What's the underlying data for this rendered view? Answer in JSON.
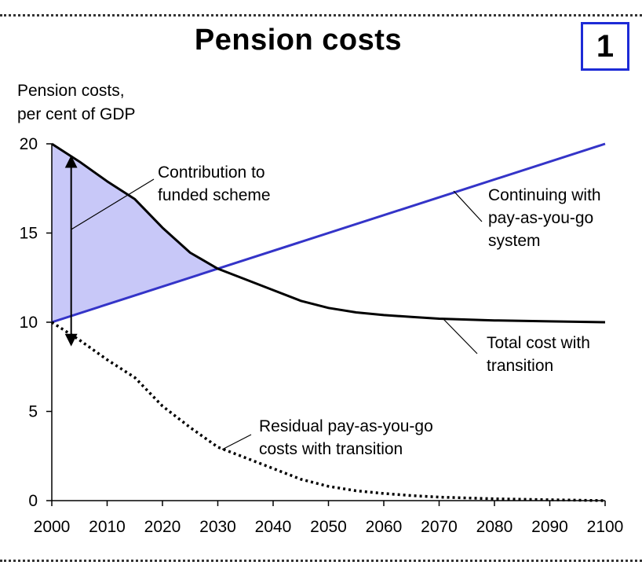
{
  "header": {
    "title": "Pension costs",
    "badge": "1"
  },
  "chart_data": {
    "type": "line",
    "title": "Pension costs",
    "ylabel_lines": [
      "Pension costs,",
      "per cent of GDP"
    ],
    "xlabel": "",
    "xlim": [
      2000,
      2100
    ],
    "ylim": [
      0,
      20
    ],
    "x_ticks": [
      2000,
      2010,
      2020,
      2030,
      2040,
      2050,
      2060,
      2070,
      2080,
      2090,
      2100
    ],
    "y_ticks": [
      0,
      5,
      10,
      15,
      20
    ],
    "grid": false,
    "legend": "none",
    "colors": {
      "payg_line": "#3434c8",
      "shade": "#c8c8f8",
      "total_line": "#000000",
      "residual_line": "#000000"
    },
    "series": [
      {
        "name": "Continuing with pay-as-you-go system",
        "style": "solid-blue",
        "x": [
          2000,
          2100
        ],
        "y": [
          10.0,
          20.0
        ]
      },
      {
        "name": "Total cost with transition",
        "style": "solid-black",
        "x": [
          2000,
          2005,
          2010,
          2015,
          2020,
          2025,
          2030,
          2035,
          2040,
          2045,
          2050,
          2055,
          2060,
          2065,
          2070,
          2080,
          2090,
          2100
        ],
        "y": [
          20.0,
          19.0,
          17.9,
          16.9,
          15.3,
          13.9,
          13.0,
          12.4,
          11.8,
          11.2,
          10.8,
          10.55,
          10.4,
          10.3,
          10.2,
          10.1,
          10.05,
          10.0
        ]
      },
      {
        "name": "Residual pay-as-you-go costs with transition",
        "style": "dotted-black",
        "x": [
          2000,
          2005,
          2010,
          2015,
          2020,
          2025,
          2030,
          2035,
          2040,
          2045,
          2050,
          2055,
          2060,
          2065,
          2070,
          2080,
          2090,
          2100
        ],
        "y": [
          10.0,
          9.0,
          7.9,
          6.9,
          5.3,
          4.1,
          3.0,
          2.4,
          1.8,
          1.2,
          0.8,
          0.55,
          0.4,
          0.28,
          0.2,
          0.1,
          0.05,
          0.0
        ]
      }
    ],
    "annotations": [
      {
        "id": "contribution",
        "lines": [
          "Contribution to",
          "funded scheme"
        ]
      },
      {
        "id": "payg",
        "lines": [
          "Continuing with",
          "pay-as-you-go",
          "system"
        ]
      },
      {
        "id": "total",
        "lines": [
          "Total cost with",
          "transition"
        ]
      },
      {
        "id": "residual",
        "lines": [
          "Residual pay-as-you-go",
          "costs with transition"
        ]
      }
    ]
  }
}
